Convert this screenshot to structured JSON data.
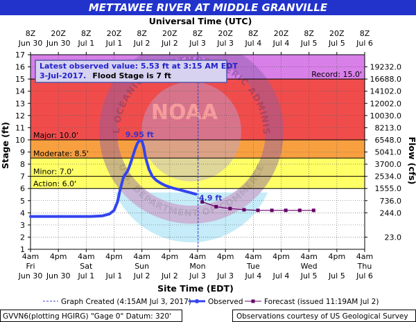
{
  "title": "METTAWEE RIVER AT MIDDLE GRANVILLE",
  "top_axis_title": "Universal Time (UTC)",
  "bottom_axis_title": "Site Time (EDT)",
  "y_left_title": "Stage (ft)",
  "y_right_title": "Flow (cfs)",
  "info": {
    "line1": "Latest observed value: 5.53 ft at 3:15 AM EDT",
    "line2a": "3-Jul-2017.",
    "line2b": "Flood Stage is 7 ft"
  },
  "record_label": "Record: 15.0'",
  "peak_label": "9.95 ft",
  "current_label": "4.9 ft",
  "legend": {
    "created": "Graph Created (4:15AM Jul 3, 2017)",
    "observed": "Observed",
    "forecast": "Forecast (issued 11:19AM Jul 2)"
  },
  "footer": {
    "left": "GVVN6(plotting HGIRG) \"Gage 0\" Datum: 320'",
    "right": "Observations courtesy of US Geological Survey"
  },
  "watermark_top": "NATIONAL OCEANIC AND ATMOSPHERIC ADMINISTRATION",
  "watermark_bottom": "U.S. DEPARTMENT OF COMMERCE",
  "watermark_center": "NOAA",
  "colors": {
    "title_bar": "#2233cc",
    "record_zone": "#d87fe8",
    "major_zone": "#f04c4c",
    "moderate_zone": "#f8a040",
    "minor_zone": "#ffff66",
    "observed": "#3344ee",
    "forecast": "#660066"
  },
  "chart_data": {
    "type": "line",
    "x_unit": "hours since Jun 30 00:00 EDT",
    "xlim": [
      4,
      148
    ],
    "ylim": [
      1,
      17
    ],
    "yticks": [
      1,
      2,
      3,
      4,
      5,
      6,
      7,
      8,
      9,
      10,
      11,
      12,
      13,
      14,
      15,
      16,
      17
    ],
    "bottom_ticks": [
      {
        "x": 4,
        "line1": "4am",
        "line2": "Fri",
        "line3": "Jun 30"
      },
      {
        "x": 16,
        "line1": "4pm",
        "line2": "",
        "line3": "Jun 30"
      },
      {
        "x": 28,
        "line1": "4am",
        "line2": "Sat",
        "line3": "Jul 1"
      },
      {
        "x": 40,
        "line1": "4pm",
        "line2": "",
        "line3": "Jul 1"
      },
      {
        "x": 52,
        "line1": "4am",
        "line2": "Sun",
        "line3": "Jul 2"
      },
      {
        "x": 64,
        "line1": "4pm",
        "line2": "",
        "line3": "Jul 2"
      },
      {
        "x": 76,
        "line1": "4am",
        "line2": "Mon",
        "line3": "Jul 3"
      },
      {
        "x": 88,
        "line1": "4pm",
        "line2": "",
        "line3": "Jul 3"
      },
      {
        "x": 100,
        "line1": "4am",
        "line2": "Tue",
        "line3": "Jul 4"
      },
      {
        "x": 112,
        "line1": "4pm",
        "line2": "",
        "line3": "Jul 4"
      },
      {
        "x": 124,
        "line1": "4am",
        "line2": "Wed",
        "line3": "Jul 5"
      },
      {
        "x": 136,
        "line1": "4pm",
        "line2": "",
        "line3": "Jul 5"
      },
      {
        "x": 148,
        "line1": "4am",
        "line2": "Thu",
        "line3": "Jul 6"
      }
    ],
    "top_ticks": [
      {
        "x": 4,
        "line1": "8Z",
        "line2": "Jun 30"
      },
      {
        "x": 16,
        "line1": "20Z",
        "line2": "Jun 30"
      },
      {
        "x": 28,
        "line1": "8Z",
        "line2": "Jul 1"
      },
      {
        "x": 40,
        "line1": "20Z",
        "line2": "Jul 1"
      },
      {
        "x": 52,
        "line1": "8Z",
        "line2": "Jul 2"
      },
      {
        "x": 64,
        "line1": "20Z",
        "line2": "Jul 2"
      },
      {
        "x": 76,
        "line1": "8Z",
        "line2": "Jul 3"
      },
      {
        "x": 88,
        "line1": "20Z",
        "line2": "Jul 3"
      },
      {
        "x": 100,
        "line1": "8Z",
        "line2": "Jul 4"
      },
      {
        "x": 112,
        "line1": "20Z",
        "line2": "Jul 4"
      },
      {
        "x": 124,
        "line1": "8Z",
        "line2": "Jul 5"
      },
      {
        "x": 136,
        "line1": "20Z",
        "line2": "Jul 5"
      },
      {
        "x": 148,
        "line1": "8Z",
        "line2": "Jul 6"
      }
    ],
    "flow_ticks": [
      {
        "stage": 2.0,
        "label": "23.0"
      },
      {
        "stage": 4.0,
        "label": "244.0"
      },
      {
        "stage": 5.0,
        "label": "736.0"
      },
      {
        "stage": 6.0,
        "label": "1555.0"
      },
      {
        "stage": 7.0,
        "label": "2534.0"
      },
      {
        "stage": 8.0,
        "label": "3700.0"
      },
      {
        "stage": 9.0,
        "label": "5041.0"
      },
      {
        "stage": 10.0,
        "label": "6548.0"
      },
      {
        "stage": 11.0,
        "label": "8213.0"
      },
      {
        "stage": 12.0,
        "label": "10030.0"
      },
      {
        "stage": 13.0,
        "label": "12002.0"
      },
      {
        "stage": 14.0,
        "label": "14102.0"
      },
      {
        "stage": 15.0,
        "label": "16688.0"
      },
      {
        "stage": 16.0,
        "label": "19232.0"
      }
    ],
    "zones": [
      {
        "name": "Record",
        "from": 15.0,
        "to": 17,
        "label": "Record: 15.0'"
      },
      {
        "name": "Major",
        "from": 10.0,
        "to": 15.0,
        "label": "Major: 10.0'"
      },
      {
        "name": "Moderate",
        "from": 8.5,
        "to": 10.0,
        "label": "Moderate: 8.5'"
      },
      {
        "name": "Minor",
        "from": 7.0,
        "to": 8.5,
        "label": "Minor: 7.0'"
      },
      {
        "name": "Action",
        "from": 6.0,
        "to": 7.0,
        "label": "Action: 6.0'"
      }
    ],
    "created_x": 76.25,
    "series": [
      {
        "name": "Observed",
        "x": [
          4,
          10,
          20,
          30,
          35,
          38,
          40,
          41.5,
          42.5,
          44,
          46,
          47,
          48,
          49,
          50,
          51,
          52,
          52.8,
          53.5,
          55,
          56.5,
          58,
          60,
          62,
          65,
          68,
          71,
          73,
          75.25
        ],
        "y": [
          3.7,
          3.7,
          3.7,
          3.7,
          3.75,
          3.9,
          4.2,
          4.9,
          5.8,
          6.9,
          7.5,
          8.0,
          8.6,
          9.2,
          9.7,
          9.95,
          9.9,
          9.4,
          8.6,
          7.6,
          7.0,
          6.7,
          6.45,
          6.25,
          6.05,
          5.9,
          5.75,
          5.65,
          5.53
        ]
      },
      {
        "name": "Forecast (issued 11:19AM Jul 2)",
        "x": [
          78,
          84,
          90,
          96,
          102,
          108,
          114,
          120,
          126
        ],
        "y": [
          4.9,
          4.5,
          4.35,
          4.25,
          4.2,
          4.2,
          4.2,
          4.2,
          4.2
        ]
      }
    ],
    "peak": {
      "x": 51,
      "y": 9.95,
      "label": "9.95 ft"
    },
    "current": {
      "x": 78,
      "y": 4.9,
      "label": "4.9 ft"
    }
  }
}
